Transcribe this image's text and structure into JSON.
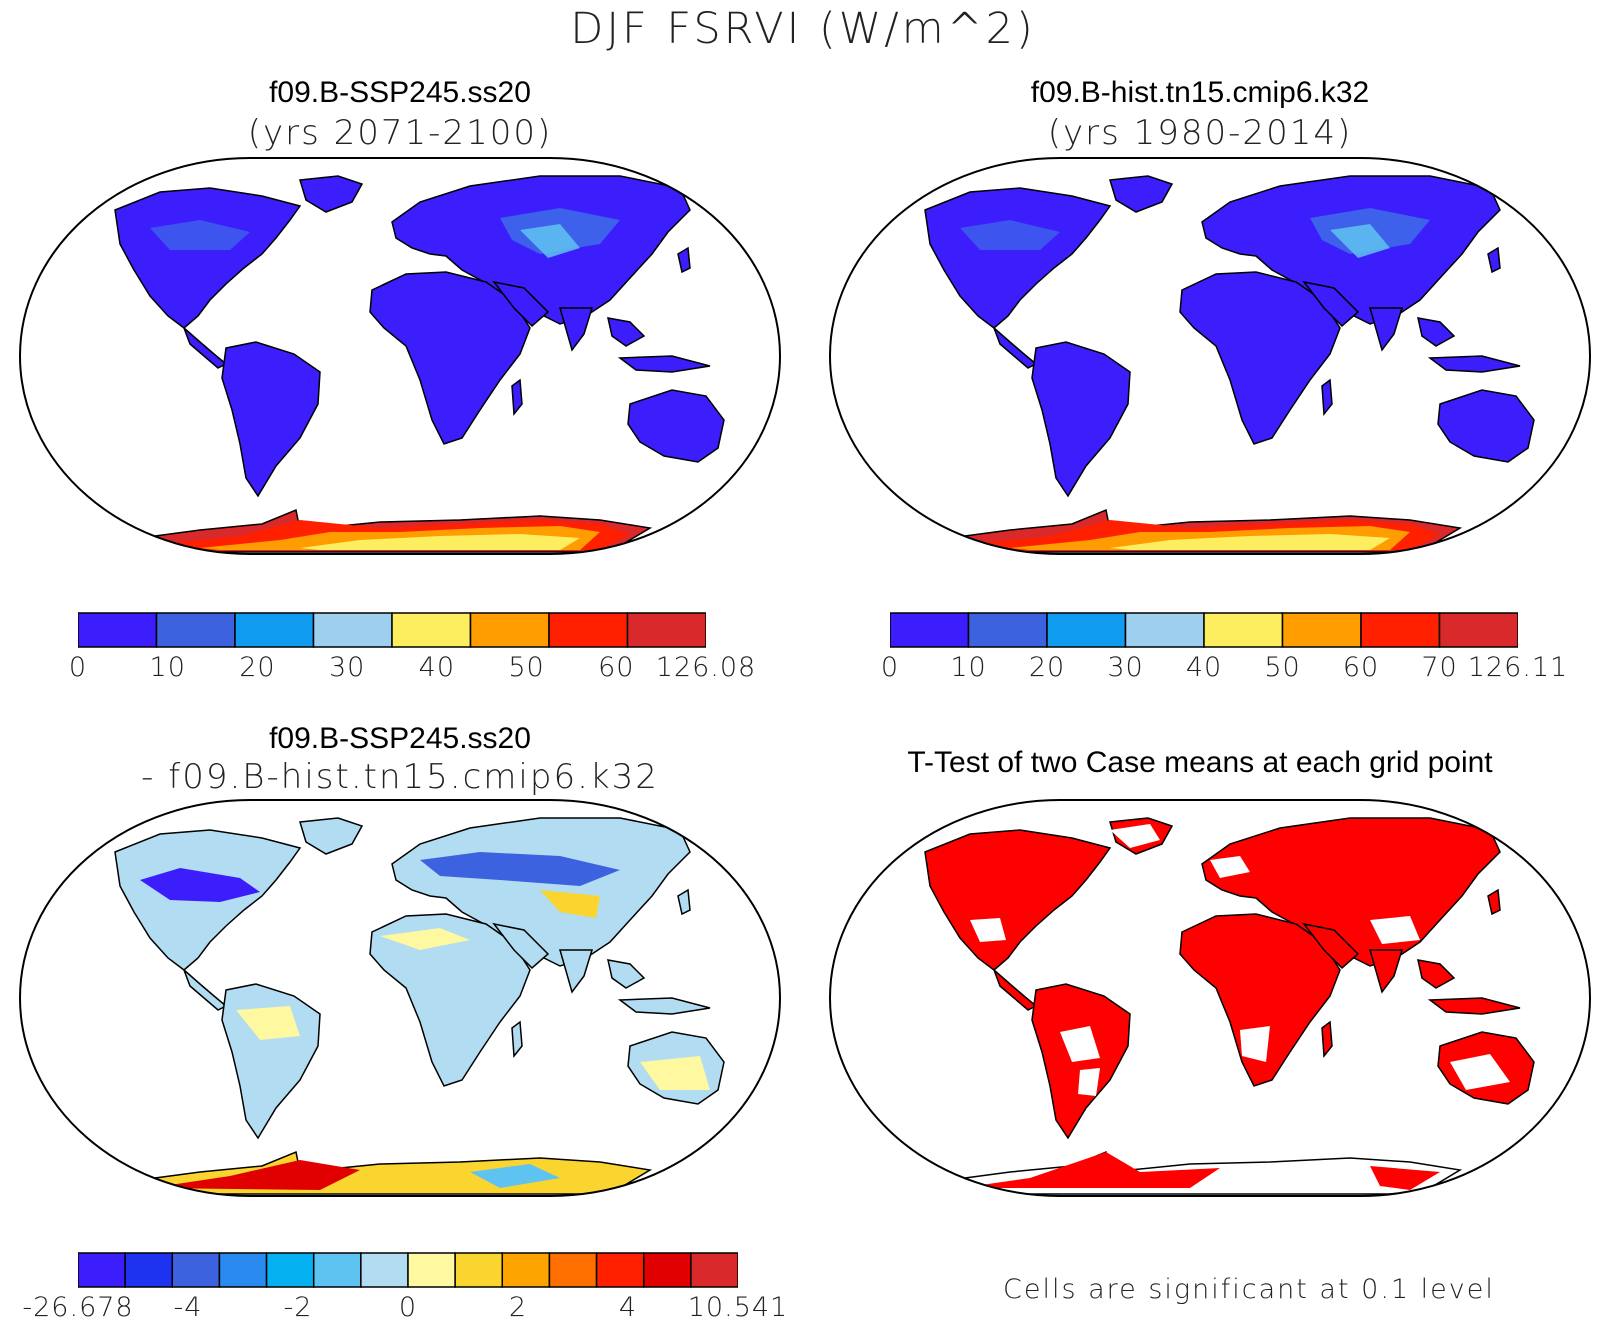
{
  "title": "DJF FSRVI (W/m^2)",
  "colors": {
    "land_low": "#3c1dfb",
    "land_mid": "#3d6de8",
    "ocean": "#ffffff",
    "coast": "#000000",
    "sig_red": "#ff0000"
  },
  "panels": [
    {
      "id": "case1",
      "title_line1": "f09.B-SSP245.ss20",
      "title_line2": "(yrs 2071-2100)",
      "colorbar": {
        "colors": [
          "#3c1dfb",
          "#3d62df",
          "#0f9bf0",
          "#9dd0ef",
          "#fdee5f",
          "#fe9c00",
          "#ff2000",
          "#d9292b"
        ],
        "labels": [
          "0",
          "10",
          "20",
          "30",
          "40",
          "50",
          "60",
          "126.08"
        ]
      }
    },
    {
      "id": "case2",
      "title_line1": "f09.B-hist.tn15.cmip6.k32",
      "title_line2": "(yrs 1980-2014)",
      "colorbar": {
        "colors": [
          "#3c1dfb",
          "#3d62df",
          "#0f9bf0",
          "#9dd0ef",
          "#fdee5f",
          "#fe9c00",
          "#ff2000",
          "#d9292b"
        ],
        "labels": [
          "0",
          "10",
          "20",
          "30",
          "40",
          "50",
          "60",
          "70",
          "126.11"
        ]
      }
    },
    {
      "id": "diff",
      "title_line1": "f09.B-SSP245.ss20",
      "title_line2": "- f09.B-hist.tn15.cmip6.k32",
      "colorbar": {
        "colors": [
          "#3c1dfb",
          "#1e33ef",
          "#3d62df",
          "#2b8af0",
          "#04b0f0",
          "#5ec3f0",
          "#b1dcf1",
          "#fef8a1",
          "#fbd52f",
          "#fea400",
          "#fe6f00",
          "#ff2000",
          "#e00000",
          "#d9292b"
        ],
        "labels": [
          "-26.678",
          "-4",
          "-2",
          "0",
          "2",
          "4",
          "10.541"
        ]
      }
    },
    {
      "id": "ttest",
      "title_line1": "T-Test of two Case means at each grid point",
      "note": "Cells are significant at 0.1 level"
    }
  ]
}
